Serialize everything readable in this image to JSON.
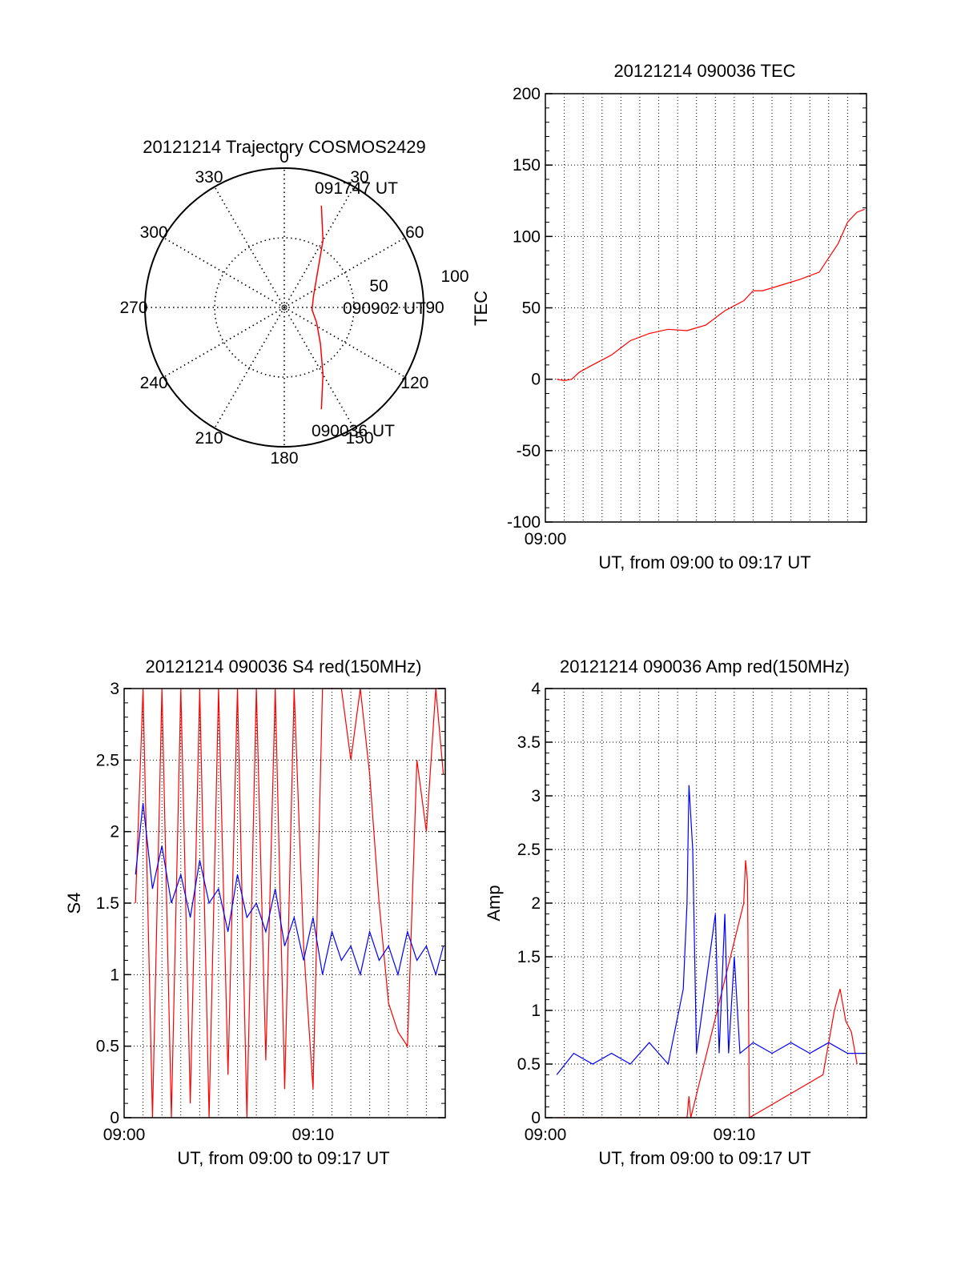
{
  "chart_data": [
    {
      "type": "polar",
      "title": "20121214 Trajectory COSMOS2429",
      "angle_labels": [
        "0",
        "30",
        "60",
        "90",
        "120",
        "150",
        "180",
        "210",
        "240",
        "270",
        "300",
        "330"
      ],
      "radius_labels": [
        "50",
        "100"
      ],
      "rlim": [
        0,
        100
      ],
      "grid": true,
      "trajectory": {
        "color": "#ff0000",
        "points": [
          {
            "az": 20,
            "el": 20
          },
          {
            "az": 30,
            "el": 40
          },
          {
            "az": 45,
            "el": 60
          },
          {
            "az": 70,
            "el": 70
          },
          {
            "az": 95,
            "el": 72
          },
          {
            "az": 115,
            "el": 67
          },
          {
            "az": 135,
            "el": 57
          },
          {
            "az": 150,
            "el": 40
          },
          {
            "az": 160,
            "el": 20
          }
        ],
        "labels": {
          "start": "090036 UT",
          "mid": "090902 UT",
          "end": "091747 UT"
        }
      }
    },
    {
      "type": "line",
      "title": "20121214 090036 TEC",
      "xlabel": "UT, from 09:00 to 09:17 UT",
      "ylabel": "TEC",
      "x_tick_labels": [
        "09:00"
      ],
      "xlim": [
        0,
        17
      ],
      "ylim": [
        -100,
        200
      ],
      "y_ticks": [
        -100,
        -50,
        0,
        50,
        100,
        150,
        200
      ],
      "grid": true,
      "series": [
        {
          "color": "#ff0000",
          "x": [
            0.6,
            1.0,
            1.4,
            1.8,
            2.5,
            3.5,
            4.5,
            5.5,
            6.5,
            7.5,
            8.0,
            8.5,
            9.5,
            10.5,
            11.0,
            11.5,
            12.5,
            13.5,
            14.5,
            15.0,
            15.5,
            16.0,
            16.5,
            16.9
          ],
          "y": [
            0,
            -1,
            0,
            5,
            10,
            17,
            27,
            32,
            35,
            34,
            36,
            38,
            48,
            55,
            62,
            62,
            66,
            70,
            75,
            85,
            95,
            110,
            117,
            119
          ]
        }
      ]
    },
    {
      "type": "line",
      "title": "20121214 090036 S4 red(150MHz)",
      "xlabel": "UT, from 09:00 to 09:17 UT",
      "ylabel": "S4",
      "x_tick_labels": [
        "09:00",
        "09:10"
      ],
      "xlim": [
        0,
        17
      ],
      "ylim": [
        0,
        3
      ],
      "y_ticks": [
        0,
        0.5,
        1,
        1.5,
        2,
        2.5,
        3
      ],
      "grid": true,
      "series": [
        {
          "color": "#ff0000",
          "x": [
            0.6,
            1.0,
            1.5,
            2.0,
            2.5,
            3.0,
            3.5,
            4.0,
            4.5,
            5.0,
            5.5,
            6.0,
            6.5,
            7.0,
            7.5,
            8.0,
            8.5,
            9.0,
            9.5,
            10.0,
            10.5,
            11.0,
            11.5,
            12.0,
            12.5,
            13.0,
            13.5,
            14.0,
            14.5,
            15.0,
            15.5,
            16.0,
            16.5,
            16.9
          ],
          "y": [
            1.5,
            3.0,
            0.0,
            3.0,
            0.0,
            3.0,
            0.1,
            3.0,
            0.0,
            3.0,
            0.3,
            3.0,
            0.0,
            3.0,
            0.4,
            3.0,
            0.2,
            3.0,
            1.2,
            0.2,
            3.0,
            3.0,
            3.0,
            2.5,
            3.0,
            2.4,
            1.5,
            0.8,
            0.6,
            0.5,
            2.5,
            2.0,
            3.0,
            2.4
          ]
        },
        {
          "color": "#0000ff",
          "x": [
            0.6,
            1.0,
            1.5,
            2.0,
            2.5,
            3.0,
            3.5,
            4.0,
            4.5,
            5.0,
            5.5,
            6.0,
            6.5,
            7.0,
            7.5,
            8.0,
            8.5,
            9.0,
            9.5,
            10.0,
            10.5,
            11.0,
            11.5,
            12.0,
            12.5,
            13.0,
            13.5,
            14.0,
            14.5,
            15.0,
            15.5,
            16.0,
            16.5,
            16.9
          ],
          "y": [
            1.7,
            2.2,
            1.6,
            1.9,
            1.5,
            1.7,
            1.4,
            1.8,
            1.5,
            1.6,
            1.3,
            1.7,
            1.4,
            1.5,
            1.3,
            1.6,
            1.2,
            1.4,
            1.1,
            1.4,
            1.0,
            1.3,
            1.1,
            1.2,
            1.0,
            1.3,
            1.1,
            1.2,
            1.0,
            1.3,
            1.1,
            1.2,
            1.0,
            1.2
          ]
        }
      ]
    },
    {
      "type": "line",
      "title": "20121214 090036 Amp red(150MHz)",
      "xlabel": "UT, from 09:00 to 09:17 UT",
      "ylabel": "Amp",
      "x_tick_labels": [
        "09:00",
        "09:10"
      ],
      "xlim": [
        0,
        17
      ],
      "ylim": [
        0,
        4
      ],
      "y_ticks": [
        0,
        0.5,
        1,
        1.5,
        2,
        2.5,
        3,
        3.5,
        4
      ],
      "grid": true,
      "series": [
        {
          "color": "#ff0000",
          "x": [
            0.6,
            7.5,
            7.6,
            7.7,
            10.5,
            10.6,
            10.7,
            10.8,
            14.7,
            15.0,
            15.3,
            15.6,
            15.9,
            16.2,
            16.5
          ],
          "y": [
            0,
            0,
            0.2,
            0,
            2.0,
            2.4,
            2.2,
            0,
            0.4,
            0.7,
            1.0,
            1.2,
            0.9,
            0.8,
            0.5
          ]
        },
        {
          "color": "#0000ff",
          "x": [
            0.6,
            1.5,
            2.5,
            3.5,
            4.5,
            5.5,
            6.5,
            7.3,
            7.5,
            7.6,
            7.8,
            8.0,
            9.0,
            9.2,
            9.5,
            9.7,
            10.0,
            10.3,
            11.0,
            12.0,
            13.0,
            14.0,
            15.0,
            16.0,
            16.9
          ],
          "y": [
            0.4,
            0.6,
            0.5,
            0.6,
            0.5,
            0.7,
            0.5,
            1.2,
            2.0,
            3.1,
            2.5,
            0.6,
            1.9,
            0.6,
            1.9,
            0.6,
            1.5,
            0.6,
            0.7,
            0.6,
            0.7,
            0.6,
            0.7,
            0.6,
            0.6
          ]
        }
      ]
    }
  ]
}
